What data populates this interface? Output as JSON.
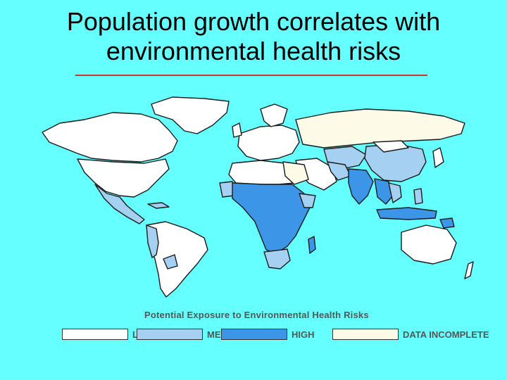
{
  "title": {
    "line1": "Population growth correlates with",
    "line2": "environmental health risks"
  },
  "map": {
    "colors": {
      "ocean": "#66ffff",
      "border": "#1a1a1a",
      "low": "#ffffff",
      "medium": "#a6d0f2",
      "high": "#3d95e8",
      "data_incomplete": "#fdfbe8"
    }
  },
  "legend": {
    "title": "Potential Exposure to Environmental Health Risks",
    "items": [
      {
        "label": "LOW",
        "color": "#ffffff"
      },
      {
        "label": "MEDIUM",
        "color": "#a6d0f2"
      },
      {
        "label": "HIGH",
        "color": "#3d95e8"
      },
      {
        "label": "DATA INCOMPLETE",
        "color": "#fdfbe8"
      }
    ]
  }
}
